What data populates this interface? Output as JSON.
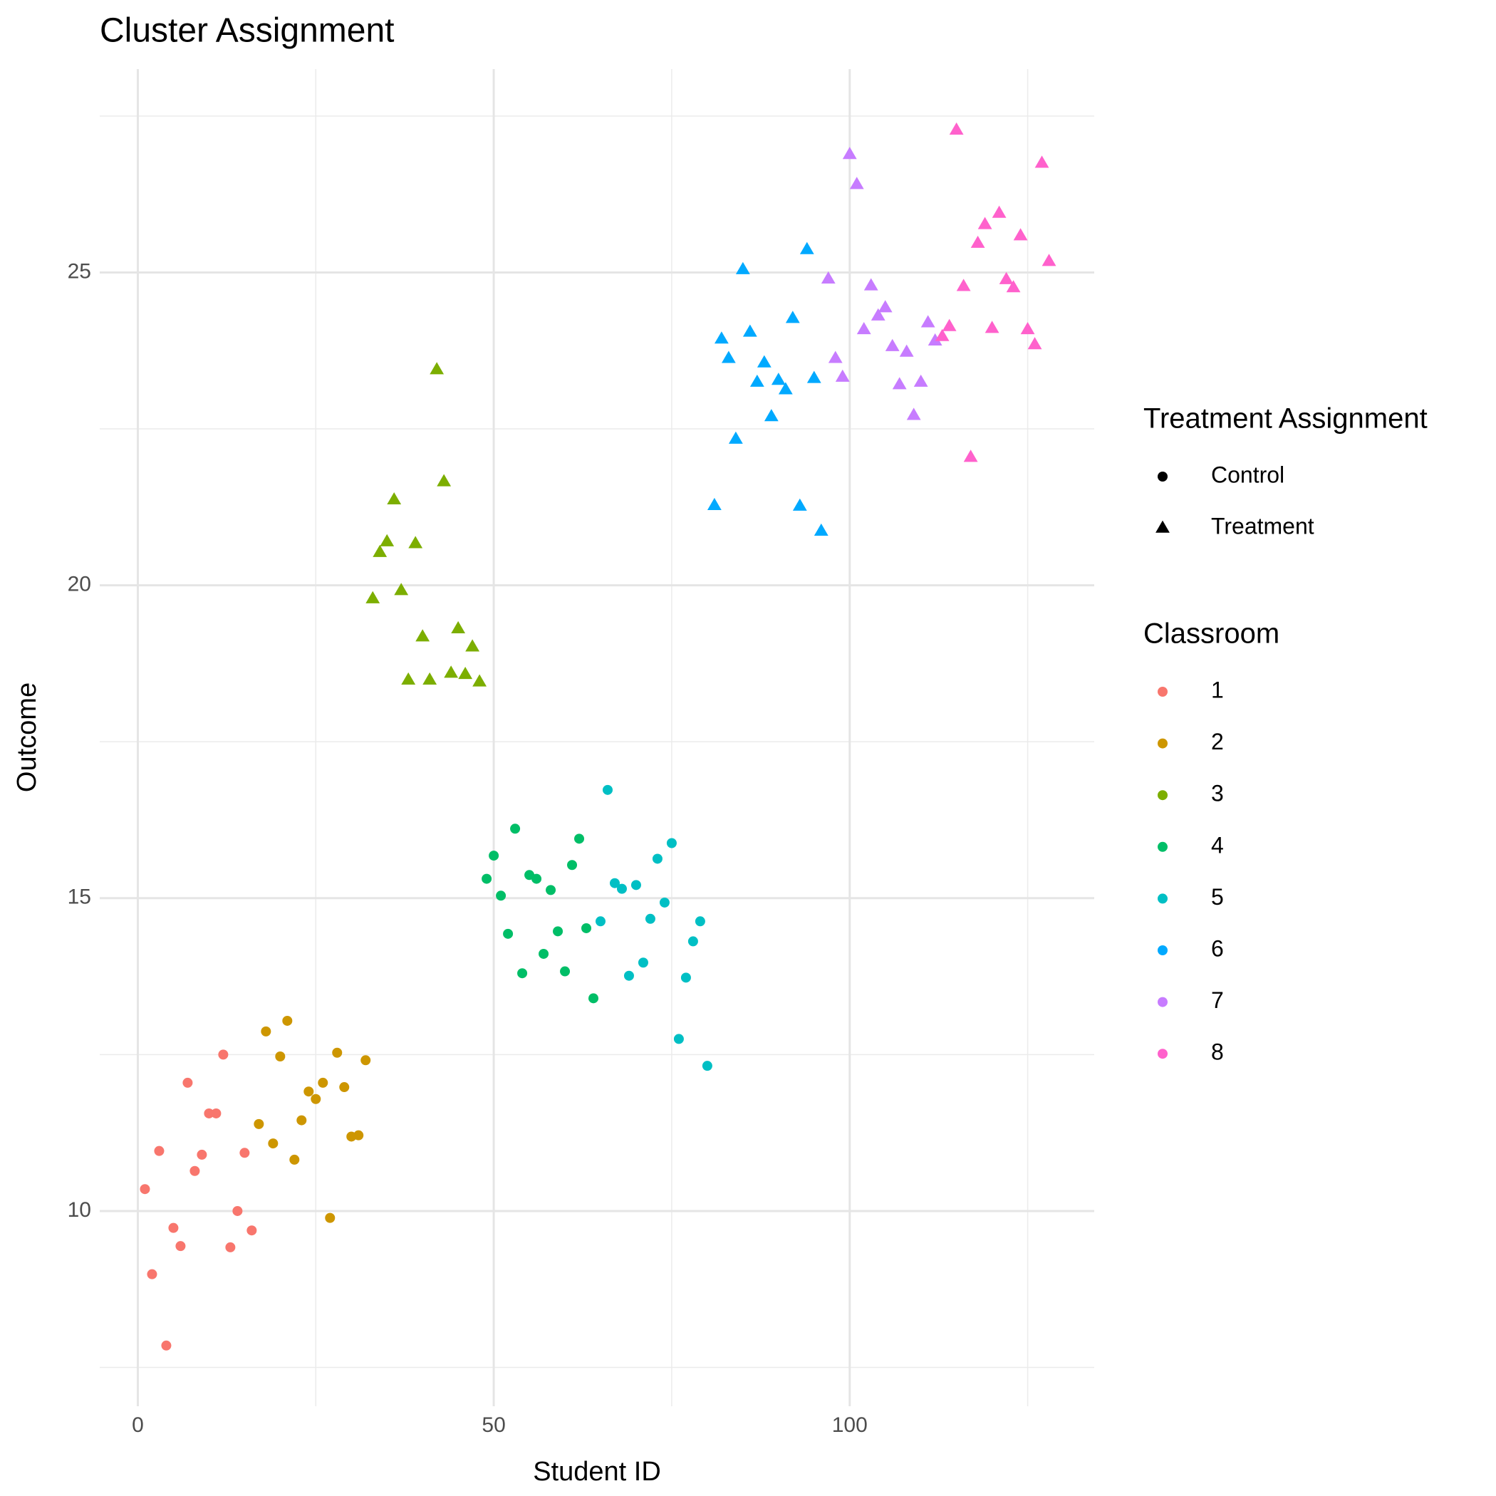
{
  "chart_data": {
    "type": "scatter",
    "title": "Cluster Assignment",
    "x_label": "Student ID",
    "y_label": "Outcome",
    "xlim": [
      -5.35,
      134.35
    ],
    "ylim": [
      6.88,
      28.25
    ],
    "xticks": [
      0,
      50,
      100
    ],
    "yticks": [
      10,
      15,
      20,
      25
    ],
    "x_minor_grid": [
      25,
      75,
      125
    ],
    "y_minor_grid": [
      7.5,
      12.5,
      17.5,
      22.5,
      27.5
    ],
    "grid": true,
    "shape_legend": {
      "title": "Treatment Assignment",
      "items": [
        {
          "label": "Control",
          "shape": "circle"
        },
        {
          "label": "Treatment",
          "shape": "triangle"
        }
      ]
    },
    "color_legend_title": "Classroom",
    "series": [
      {
        "name": "1",
        "color": "#F8766D",
        "shape": "circle",
        "x": [
          1,
          2,
          3,
          4,
          5,
          6,
          7,
          8,
          9,
          10,
          11,
          12,
          13,
          14,
          15,
          16
        ],
        "values": [
          10.35,
          8.99,
          10.96,
          7.85,
          9.73,
          9.44,
          12.05,
          10.64,
          10.9,
          11.56,
          11.56,
          12.5,
          9.42,
          10.0,
          10.93,
          9.69
        ]
      },
      {
        "name": "2",
        "color": "#CD9600",
        "shape": "circle",
        "x": [
          17,
          18,
          19,
          20,
          21,
          22,
          23,
          24,
          25,
          26,
          27,
          28,
          29,
          30,
          31,
          32
        ],
        "values": [
          11.39,
          12.87,
          11.08,
          12.47,
          13.04,
          10.82,
          11.45,
          11.91,
          11.79,
          12.05,
          9.89,
          12.53,
          11.98,
          11.19,
          11.21,
          12.41
        ]
      },
      {
        "name": "3",
        "color": "#7CAE00",
        "shape": "triangle",
        "x": [
          33,
          34,
          35,
          36,
          37,
          38,
          39,
          40,
          41,
          42,
          43,
          44,
          45,
          46,
          47,
          48
        ],
        "values": [
          19.79,
          20.53,
          20.7,
          21.37,
          19.92,
          18.49,
          20.67,
          19.18,
          18.49,
          23.45,
          21.66,
          18.6,
          19.31,
          18.58,
          19.02,
          18.46
        ]
      },
      {
        "name": "4",
        "color": "#00BE67",
        "shape": "circle",
        "x": [
          49,
          50,
          51,
          52,
          53,
          54,
          55,
          56,
          57,
          58,
          59,
          60,
          61,
          62,
          63,
          64
        ],
        "values": [
          15.31,
          15.68,
          15.04,
          14.43,
          16.11,
          13.8,
          15.37,
          15.31,
          14.11,
          15.13,
          14.47,
          13.83,
          15.53,
          15.95,
          14.52,
          13.4
        ]
      },
      {
        "name": "5",
        "color": "#00BFC4",
        "shape": "circle",
        "x": [
          65,
          66,
          67,
          68,
          69,
          70,
          71,
          72,
          73,
          74,
          75,
          76,
          77,
          78,
          79,
          80
        ],
        "values": [
          14.63,
          16.73,
          15.24,
          15.15,
          13.76,
          15.21,
          13.97,
          14.67,
          15.63,
          14.93,
          15.88,
          12.75,
          13.73,
          14.31,
          14.63,
          12.32
        ]
      },
      {
        "name": "6",
        "color": "#00A9FF",
        "shape": "triangle",
        "x": [
          81,
          82,
          83,
          84,
          85,
          86,
          87,
          88,
          89,
          90,
          91,
          92,
          93,
          94,
          95,
          96
        ],
        "values": [
          21.28,
          23.94,
          23.63,
          22.34,
          25.05,
          24.05,
          23.25,
          23.56,
          22.7,
          23.28,
          23.13,
          24.27,
          21.27,
          25.37,
          23.31,
          20.87
        ]
      },
      {
        "name": "7",
        "color": "#C77CFF",
        "shape": "triangle",
        "x": [
          97,
          98,
          99,
          100,
          101,
          102,
          103,
          104,
          105,
          106,
          107,
          108,
          109,
          110,
          111,
          112
        ],
        "values": [
          24.9,
          23.63,
          23.33,
          26.89,
          26.41,
          24.09,
          24.79,
          24.31,
          24.44,
          23.82,
          23.21,
          23.73,
          22.72,
          23.25,
          24.2,
          23.91
        ]
      },
      {
        "name": "8",
        "color": "#FF61CC",
        "shape": "triangle",
        "x": [
          113,
          114,
          115,
          116,
          117,
          118,
          119,
          120,
          121,
          122,
          123,
          124,
          125,
          126,
          127,
          128
        ],
        "values": [
          23.98,
          24.14,
          27.28,
          24.78,
          22.05,
          25.47,
          25.77,
          24.11,
          25.95,
          24.89,
          24.76,
          25.59,
          24.09,
          23.85,
          26.75,
          25.18
        ]
      }
    ]
  }
}
